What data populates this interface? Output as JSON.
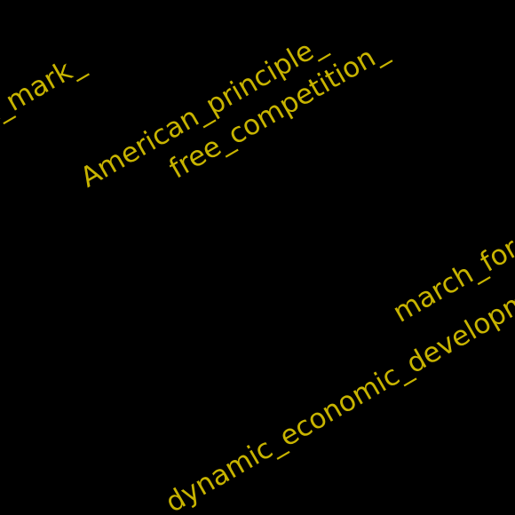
{
  "canvas": {
    "background": "#000000",
    "text_color": "#c8b400"
  },
  "phrases": [
    "t_mark_",
    "American_principle_",
    "free_competition_",
    "march_for",
    "dynamic_economic_developm"
  ]
}
